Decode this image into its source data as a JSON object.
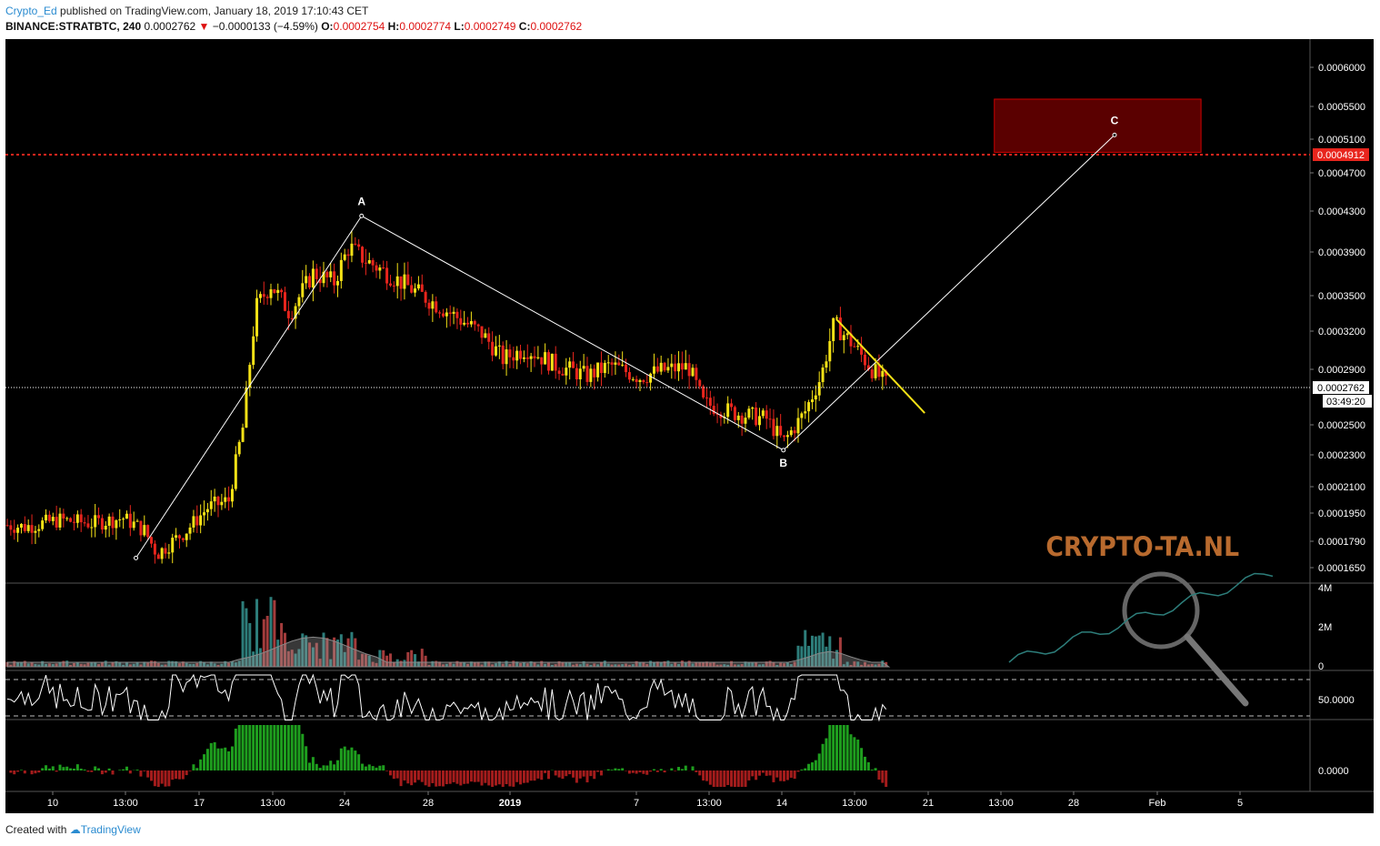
{
  "header": {
    "author": "Crypto_Ed",
    "published_text": " published on TradingView.com, January 18, 2019 17:10:43 CET",
    "symbol": "BINANCE:STRATBTC, 240",
    "last": "0.0002762",
    "change_arrow": "▼",
    "change": "−0.0000133 (−4.59%)",
    "o_label": "O:",
    "o_value": "0.0002754",
    "h_label": "H:",
    "h_value": "0.0002774",
    "l_label": "L:",
    "l_value": "0.0002749",
    "c_label": "C:",
    "c_value": "0.0002762"
  },
  "footer": {
    "created_with": "Created with",
    "brand": "TradingView"
  },
  "watermark": "CRYPTO-TA.NL",
  "colors": {
    "background": "#000000",
    "up_candle": "#f5e216",
    "down_candle": "#e8251d",
    "resistance": "#e8251d",
    "target_box_fill": "#5a0000",
    "pattern_line": "#ffffff",
    "trendline": "#f5e216",
    "watermark": "#b86a2e"
  },
  "chart_data": {
    "type": "candlestick",
    "symbol": "STRATBTC",
    "y_axis_ticks": [
      "0.0006000",
      "0.0005500",
      "0.0005100",
      "0.0004700",
      "0.0004300",
      "0.0003900",
      "0.0003500",
      "0.0003200",
      "0.0002900",
      "0.0002500",
      "0.0002300",
      "0.0002100",
      "0.0001950",
      "0.0001790",
      "0.0001650"
    ],
    "y_tick_values": [
      0.0006,
      0.00055,
      0.00051,
      0.00047,
      0.00043,
      0.00039,
      0.00035,
      0.00032,
      0.00029,
      0.00025,
      0.00023,
      0.00021,
      0.000195,
      0.000179,
      0.000165
    ],
    "x_axis_ticks": [
      "10",
      "13:00",
      "17",
      "13:00",
      "24",
      "28",
      "2019",
      "7",
      "13:00",
      "14",
      "13:00",
      "21",
      "13:00",
      "28",
      "Feb",
      "5"
    ],
    "current_price_label": "0.0002762",
    "countdown_label": "03:49:20",
    "resistance_label": "0.0004912",
    "resistance_value": 0.0004912,
    "price_path": [
      {
        "t": 0,
        "p": 0.000188
      },
      {
        "t": 0.8,
        "p": 0.000187
      },
      {
        "t": 2.5,
        "p": 0.000191
      },
      {
        "t": 4,
        "p": 0.000189
      },
      {
        "t": 5.5,
        "p": 0.000192
      },
      {
        "t": 6.5,
        "p": 0.000185
      },
      {
        "t": 7.1,
        "p": 0.000172
      },
      {
        "t": 8.5,
        "p": 0.000185
      },
      {
        "t": 9.5,
        "p": 0.000198
      },
      {
        "t": 10.5,
        "p": 0.000202
      },
      {
        "t": 11.2,
        "p": 0.00025
      },
      {
        "t": 11.8,
        "p": 0.00034
      },
      {
        "t": 12.5,
        "p": 0.00036
      },
      {
        "t": 13.4,
        "p": 0.000335
      },
      {
        "t": 14.5,
        "p": 0.00037
      },
      {
        "t": 15.5,
        "p": 0.000362
      },
      {
        "t": 16.2,
        "p": 0.000395
      },
      {
        "t": 17,
        "p": 0.000382
      },
      {
        "t": 18,
        "p": 0.00037
      },
      {
        "t": 19.5,
        "p": 0.000352
      },
      {
        "t": 21,
        "p": 0.000335
      },
      {
        "t": 22.5,
        "p": 0.000318
      },
      {
        "t": 23.5,
        "p": 0.000298
      },
      {
        "t": 24.6,
        "p": 0.000306
      },
      {
        "t": 26,
        "p": 0.000293
      },
      {
        "t": 27.5,
        "p": 0.000285
      },
      {
        "t": 28.6,
        "p": 0.000293
      },
      {
        "t": 30,
        "p": 0.000284
      },
      {
        "t": 31,
        "p": 0.000289
      },
      {
        "t": 32.3,
        "p": 0.000292
      },
      {
        "t": 33,
        "p": 0.000265
      },
      {
        "t": 34.5,
        "p": 0.000258
      },
      {
        "t": 36,
        "p": 0.000254
      },
      {
        "t": 36.8,
        "p": 0.000238
      },
      {
        "t": 37.8,
        "p": 0.000258
      },
      {
        "t": 38.6,
        "p": 0.000285
      },
      {
        "t": 39.2,
        "p": 0.000326
      },
      {
        "t": 40,
        "p": 0.000311
      },
      {
        "t": 41,
        "p": 0.00029
      },
      {
        "t": 41.8,
        "p": 0.000277
      }
    ],
    "volume": {
      "y_axis_ticks": [
        "4M",
        "2M",
        "0"
      ],
      "y_tick_values": [
        4,
        2,
        0
      ],
      "unit": "M"
    },
    "rsi": {
      "y_axis_ticks": [
        "50.0000"
      ],
      "y_tick_values": [
        50
      ]
    },
    "oscillator": {
      "y_axis_ticks": [
        "0.0000"
      ],
      "y_tick_values": [
        0
      ]
    },
    "annotations": [
      {
        "label": "A",
        "t": 16.8,
        "p": 0.000425
      },
      {
        "label": "B",
        "t": 36.8,
        "p": 0.000233
      },
      {
        "label": "C",
        "t": 52.5,
        "p": 0.000515
      }
    ],
    "pattern_start": {
      "t": 6.1,
      "p": 0.00017
    },
    "target_zone": {
      "t_from": 46.8,
      "t_to": 56.6,
      "p_low": 0.000494,
      "p_high": 0.000559
    },
    "trendline": {
      "t_from": 39.3,
      "p_from": 0.00033,
      "t_to": 43.5,
      "p_to": 0.000258
    },
    "grid": false
  }
}
